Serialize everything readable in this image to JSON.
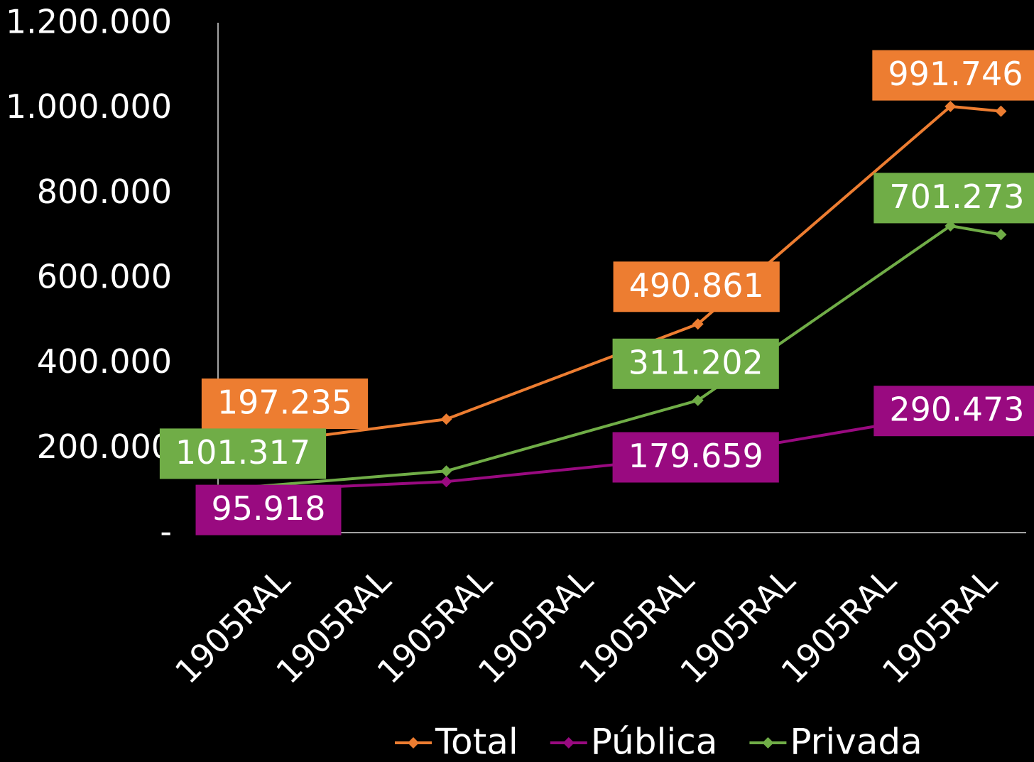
{
  "chart_data": {
    "type": "line",
    "x": [
      0,
      2.26,
      4.75,
      7.25,
      7.75
    ],
    "xlim": [
      0,
      8
    ],
    "xticks": [
      {
        "value": 0.33,
        "label": "1905RAL"
      },
      {
        "value": 1.33,
        "label": "1905RAL"
      },
      {
        "value": 2.33,
        "label": "1905RAL"
      },
      {
        "value": 3.33,
        "label": "1905RAL"
      },
      {
        "value": 4.33,
        "label": "1905RAL"
      },
      {
        "value": 5.33,
        "label": "1905RAL"
      },
      {
        "value": 6.33,
        "label": "1905RAL"
      },
      {
        "value": 7.33,
        "label": "1905RAL"
      }
    ],
    "ylim": [
      0,
      1200000
    ],
    "yticks": [
      {
        "value": 0,
        "label": "-"
      },
      {
        "value": 200000,
        "label": "200.000"
      },
      {
        "value": 400000,
        "label": "400.000"
      },
      {
        "value": 600000,
        "label": "600.000"
      },
      {
        "value": 800000,
        "label": "800.000"
      },
      {
        "value": 1000000,
        "label": "1.000.000"
      },
      {
        "value": 1200000,
        "label": "1.200.000"
      }
    ],
    "series": [
      {
        "name": "Total",
        "color": "#ED7D31",
        "values": [
          197235,
          267000,
          490861,
          1003000,
          991746
        ],
        "value_labels": [
          "197.235",
          null,
          "490.861",
          null,
          "991.746"
        ]
      },
      {
        "name": "Pública",
        "color": "#990A80",
        "values": [
          95918,
          120000,
          179659,
          280000,
          290473
        ],
        "value_labels": [
          "95.918",
          null,
          "179.659",
          null,
          "290.473"
        ]
      },
      {
        "name": "Privada",
        "color": "#70AD47",
        "values": [
          101317,
          145000,
          311202,
          722000,
          701273
        ],
        "value_labels": [
          "101.317",
          null,
          "311.202",
          null,
          "701.273"
        ]
      }
    ],
    "legend": "bottom"
  }
}
